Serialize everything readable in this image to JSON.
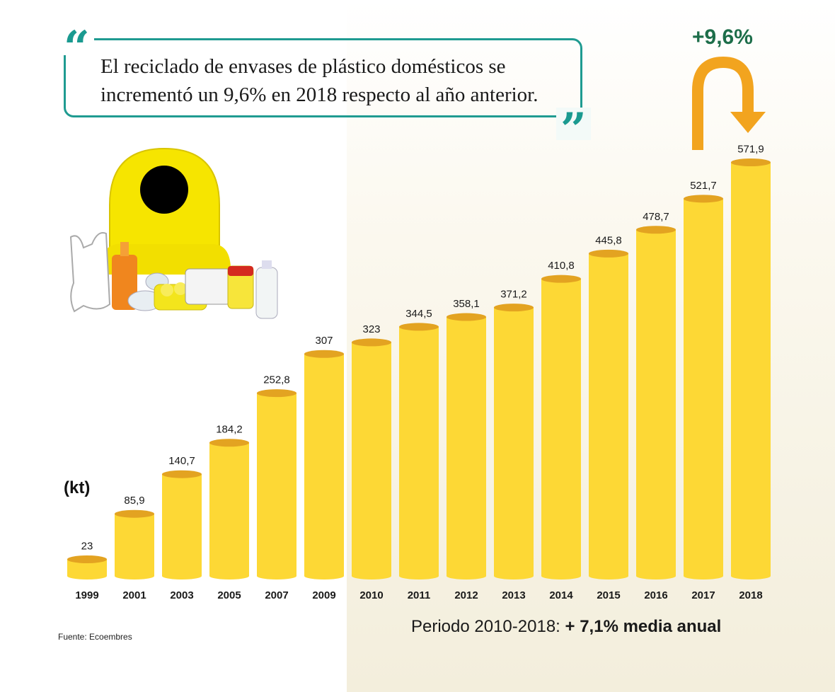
{
  "quote": {
    "text": "El reciclado de envases de plástico domésticos se incrementó un 9,6% en 2018 respecto al año anterior.",
    "open_mark": "“",
    "close_mark": "”"
  },
  "annotation": {
    "growth": "+9,6%"
  },
  "unit": "(kt)",
  "footnote": {
    "prefix": "Periodo 2010-2018:",
    "bold": "+ 7,1% media anual"
  },
  "source": "Fuente: Ecoembres",
  "colors": {
    "bar": "#fdd835",
    "bar_top": "#e3a321",
    "accent_teal": "#1f9b91",
    "arrow": "#f2a41f",
    "growth_text": "#1d6e4a"
  },
  "chart_data": {
    "type": "bar",
    "categories": [
      "1999",
      "2001",
      "2003",
      "2005",
      "2007",
      "2009",
      "2010",
      "2011",
      "2012",
      "2013",
      "2014",
      "2015",
      "2016",
      "2017",
      "2018"
    ],
    "values": [
      23,
      85.9,
      140.7,
      184.2,
      252.8,
      307,
      323,
      344.5,
      358.1,
      371.2,
      410.8,
      445.8,
      478.7,
      521.7,
      571.9
    ],
    "value_labels": [
      "23",
      "85,9",
      "140,7",
      "184,2",
      "252,8",
      "307",
      "323",
      "344,5",
      "358,1",
      "371,2",
      "410,8",
      "445,8",
      "478,7",
      "521,7",
      "571,9"
    ],
    "ylabel": "(kt)",
    "ylim": [
      0,
      600
    ],
    "grid": false
  }
}
